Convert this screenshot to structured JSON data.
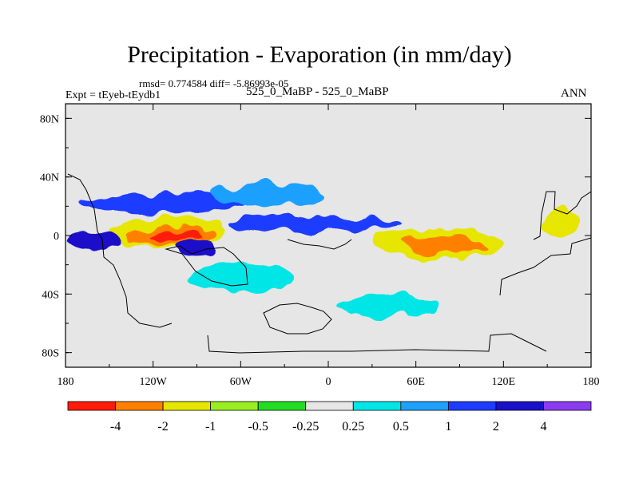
{
  "title": "Precipitation - Evaporation (in mm/day)",
  "stats": "rmsd= 0.774584 diff= -5.86993e-05",
  "expt": "Expt = tEyeb-tEydb1",
  "case": "525_0_MaBP - 525_0_MaBP",
  "season": "ANN",
  "chart_data": {
    "type": "heatmap",
    "title": "Precipitation - Evaporation (in mm/day)",
    "xlabel": "",
    "ylabel": "",
    "xlim": [
      -180,
      180
    ],
    "ylim": [
      -90,
      90
    ],
    "x_ticks": [
      {
        "value": -180,
        "label": "180"
      },
      {
        "value": -120,
        "label": "120W"
      },
      {
        "value": -60,
        "label": "60W"
      },
      {
        "value": 0,
        "label": "0"
      },
      {
        "value": 60,
        "label": "60E"
      },
      {
        "value": 120,
        "label": "120E"
      },
      {
        "value": 180,
        "label": "180"
      }
    ],
    "y_ticks": [
      {
        "value": 80,
        "label": "80N"
      },
      {
        "value": 40,
        "label": "40N"
      },
      {
        "value": 0,
        "label": "0"
      },
      {
        "value": -40,
        "label": "40S"
      },
      {
        "value": -80,
        "label": "80S"
      }
    ],
    "colorbar": {
      "boundaries": [
        -4,
        -2,
        -1,
        -0.5,
        -0.25,
        0.25,
        0.5,
        1,
        2,
        4
      ],
      "labels": [
        "-4",
        "-2",
        "-1",
        "-0.5",
        "-0.25",
        "0.25",
        "0.5",
        "1",
        "2",
        "4"
      ],
      "colors": [
        "#ff1a0a",
        "#ff8000",
        "#e6e600",
        "#99ee22",
        "#22dd22",
        "#e6e6e6",
        "#00e6e6",
        "#1ea0ff",
        "#1e3cff",
        "#1a10c8",
        "#8c3cf0"
      ]
    },
    "background_color": "#e6e6e6",
    "features": [
      {
        "name": "Tropical East Pacific drying maximum",
        "lon": -108,
        "lat": 0,
        "lon_half": 32,
        "lat_half": 6,
        "class": 1
      },
      {
        "name": "Tropical East Pacific drying core",
        "lon": -105,
        "lat": 0,
        "lon_half": 18,
        "lat_half": 3,
        "class": 0
      },
      {
        "name": "Tropical East Pacific drying fringe",
        "lon": -110,
        "lat": 2,
        "lon_half": 40,
        "lat_half": 10,
        "class": 2
      },
      {
        "name": "Indian Ocean drying maximum",
        "lon": 80,
        "lat": -6,
        "lon_half": 28,
        "lat_half": 6,
        "class": 1
      },
      {
        "name": "Indian Ocean drying fringe",
        "lon": 75,
        "lat": -5,
        "lon_half": 45,
        "lat_half": 10,
        "class": 2
      },
      {
        "name": "North Pacific moistening band",
        "lon": -115,
        "lat": 22,
        "lon_half": 55,
        "lat_half": 7,
        "class": 8
      },
      {
        "name": "Equatorial moistening band",
        "lon": -10,
        "lat": 8,
        "lon_half": 60,
        "lat_half": 5,
        "class": 8
      },
      {
        "name": "South Pacific moistening",
        "lon": -160,
        "lat": -4,
        "lon_half": 18,
        "lat_half": 6,
        "class": 9
      },
      {
        "name": "South Pacific moistening lobe",
        "lon": -90,
        "lat": -8,
        "lon_half": 15,
        "lat_half": 5,
        "class": 9
      },
      {
        "name": "Southern midlatitude moistening",
        "lon": -60,
        "lat": -28,
        "lon_half": 35,
        "lat_half": 10,
        "class": 6
      },
      {
        "name": "Southern ocean moistening",
        "lon": 40,
        "lat": -48,
        "lon_half": 35,
        "lat_half": 8,
        "class": 6
      },
      {
        "name": "West Pacific drying",
        "lon": 160,
        "lat": 8,
        "lon_half": 12,
        "lat_half": 10,
        "class": 2
      },
      {
        "name": "North Atlantic moistening",
        "lon": -40,
        "lat": 28,
        "lon_half": 40,
        "lat_half": 8,
        "class": 7
      }
    ]
  }
}
